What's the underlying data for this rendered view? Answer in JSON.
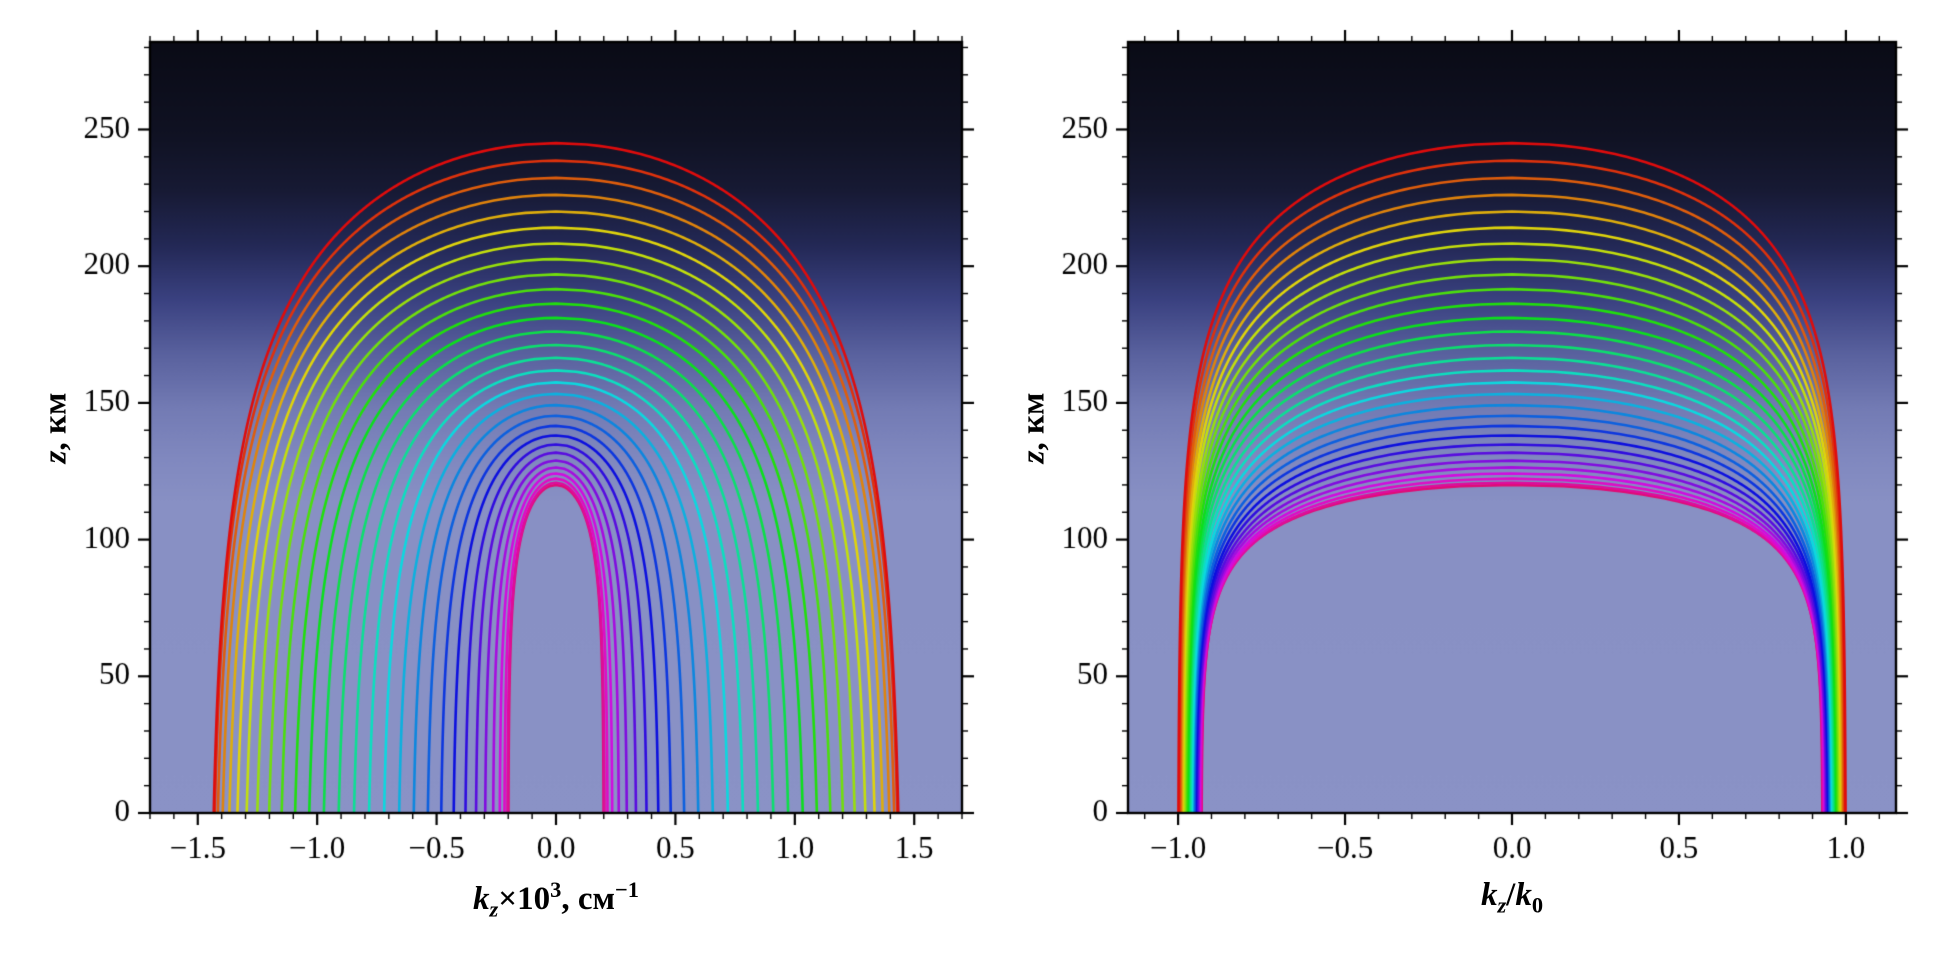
{
  "page": {
    "background": "#ffffff",
    "frame_color": "#000000",
    "text_color": "#000000"
  },
  "chart_data": {
    "type": "contour",
    "title": "",
    "legend": "none",
    "grid": false,
    "background_gradient": [
      {
        "z": 282,
        "color": "#0a0b16"
      },
      {
        "z": 248,
        "color": "#101223"
      },
      {
        "z": 228,
        "color": "#171a34"
      },
      {
        "z": 208,
        "color": "#232855"
      },
      {
        "z": 188,
        "color": "#3a4180"
      },
      {
        "z": 168,
        "color": "#59619e"
      },
      {
        "z": 148,
        "color": "#737bb4"
      },
      {
        "z": 130,
        "color": "#8088bf"
      },
      {
        "z": 114,
        "color": "#8890c4"
      },
      {
        "z": 0,
        "color": "#8a92c6"
      }
    ],
    "curves": [
      {
        "apex_km": 245.0,
        "color": "hsl(0,90%,46%)",
        "left_base": 1.45,
        "left_bend": 65.0,
        "right_base": 1.0,
        "right_bend": 40.0
      },
      {
        "apex_km": 238.6,
        "color": "hsl(11,90%,46%)",
        "left_base": 1.446,
        "left_bend": 63.6,
        "right_base": 0.998,
        "right_bend": 39.2
      },
      {
        "apex_km": 232.3,
        "color": "hsl(23,90%,46%)",
        "left_base": 1.433,
        "left_bend": 62.2,
        "right_base": 0.995,
        "right_bend": 38.5
      },
      {
        "apex_km": 226.1,
        "color": "hsl(34,90%,46%)",
        "left_base": 1.413,
        "left_bend": 60.9,
        "right_base": 0.993,
        "right_bend": 37.7
      },
      {
        "apex_km": 220.0,
        "color": "hsl(46,90%,46%)",
        "left_base": 1.385,
        "left_bend": 59.5,
        "right_base": 0.99,
        "right_bend": 37.0
      },
      {
        "apex_km": 214.1,
        "color": "hsl(57,90%,46%)",
        "left_base": 1.351,
        "left_bend": 58.1,
        "right_base": 0.988,
        "right_bend": 36.2
      },
      {
        "apex_km": 208.3,
        "color": "hsl(68,90%,46%)",
        "left_base": 1.312,
        "left_bend": 56.7,
        "right_base": 0.986,
        "right_bend": 35.4
      },
      {
        "apex_km": 202.6,
        "color": "hsl(80,90%,46%)",
        "left_base": 1.267,
        "left_bend": 55.3,
        "right_base": 0.983,
        "right_bend": 34.7
      },
      {
        "apex_km": 197.0,
        "color": "hsl(91,90%,46%)",
        "left_base": 1.217,
        "left_bend": 54.0,
        "right_base": 0.981,
        "right_bend": 33.9
      },
      {
        "apex_km": 191.6,
        "color": "hsl(102,90%,46%)",
        "left_base": 1.164,
        "left_bend": 52.6,
        "right_base": 0.978,
        "right_bend": 33.2
      },
      {
        "apex_km": 186.3,
        "color": "hsl(114,90%,46%)",
        "left_base": 1.107,
        "left_bend": 51.2,
        "right_base": 0.976,
        "right_bend": 32.4
      },
      {
        "apex_km": 181.1,
        "color": "hsl(125,90%,46%)",
        "left_base": 1.047,
        "left_bend": 49.8,
        "right_base": 0.973,
        "right_bend": 31.7
      },
      {
        "apex_km": 176.1,
        "color": "hsl(137,90%,46%)",
        "left_base": 0.985,
        "left_bend": 48.4,
        "right_base": 0.971,
        "right_bend": 30.9
      },
      {
        "apex_km": 171.2,
        "color": "hsl(148,90%,46%)",
        "left_base": 0.922,
        "left_bend": 47.1,
        "right_base": 0.969,
        "right_bend": 30.1
      },
      {
        "apex_km": 166.5,
        "color": "hsl(159,90%,46%)",
        "left_base": 0.857,
        "left_bend": 45.7,
        "right_base": 0.966,
        "right_bend": 29.4
      },
      {
        "apex_km": 161.9,
        "color": "hsl(171,90%,46%)",
        "left_base": 0.793,
        "left_bend": 44.3,
        "right_base": 0.964,
        "right_bend": 28.6
      },
      {
        "apex_km": 157.5,
        "color": "hsl(182,90%,46%)",
        "left_base": 0.729,
        "left_bend": 42.9,
        "right_base": 0.961,
        "right_bend": 27.9
      },
      {
        "apex_km": 153.3,
        "color": "hsl(193,90%,46%)",
        "left_base": 0.665,
        "left_bend": 41.6,
        "right_base": 0.959,
        "right_bend": 27.1
      },
      {
        "apex_km": 149.2,
        "color": "hsl(205,90%,46%)",
        "left_base": 0.603,
        "left_bend": 40.2,
        "right_base": 0.957,
        "right_bend": 26.3
      },
      {
        "apex_km": 145.3,
        "color": "hsl(216,90%,46%)",
        "left_base": 0.543,
        "left_bend": 38.8,
        "right_base": 0.954,
        "right_bend": 25.6
      },
      {
        "apex_km": 141.6,
        "color": "hsl(228,90%,46%)",
        "left_base": 0.486,
        "left_bend": 37.4,
        "right_base": 0.952,
        "right_bend": 24.8
      },
      {
        "apex_km": 138.1,
        "color": "hsl(239,90%,46%)",
        "left_base": 0.433,
        "left_bend": 36.0,
        "right_base": 0.949,
        "right_bend": 24.1
      },
      {
        "apex_km": 134.8,
        "color": "hsl(250,90%,46%)",
        "left_base": 0.383,
        "left_bend": 34.7,
        "right_base": 0.947,
        "right_bend": 23.3
      },
      {
        "apex_km": 131.8,
        "color": "hsl(262,90%,46%)",
        "left_base": 0.338,
        "left_bend": 33.3,
        "right_base": 0.944,
        "right_bend": 22.6
      },
      {
        "apex_km": 128.9,
        "color": "hsl(273,90%,46%)",
        "left_base": 0.299,
        "left_bend": 31.9,
        "right_base": 0.942,
        "right_bend": 21.8
      },
      {
        "apex_km": 126.4,
        "color": "hsl(284,90%,46%)",
        "left_base": 0.265,
        "left_bend": 30.5,
        "right_base": 0.94,
        "right_bend": 21.0
      },
      {
        "apex_km": 124.2,
        "color": "hsl(296,90%,46%)",
        "left_base": 0.237,
        "left_bend": 29.1,
        "right_base": 0.937,
        "right_bend": 20.3
      },
      {
        "apex_km": 122.3,
        "color": "hsl(307,90%,46%)",
        "left_base": 0.217,
        "left_bend": 27.8,
        "right_base": 0.935,
        "right_bend": 19.5
      },
      {
        "apex_km": 120.8,
        "color": "hsl(319,90%,46%)",
        "left_base": 0.204,
        "left_bend": 26.4,
        "right_base": 0.932,
        "right_bend": 18.8
      },
      {
        "apex_km": 120.0,
        "color": "hsl(330,90%,46%)",
        "left_base": 0.2,
        "left_bend": 25.0,
        "right_base": 0.93,
        "right_bend": 18.0
      }
    ],
    "panels": [
      {
        "panel": "left",
        "xlabel_plain": "kz×10³, см⁻¹",
        "xlabel_segments": [
          {
            "text": "k",
            "italic": true
          },
          {
            "text": "z",
            "italic": true,
            "script": "sub"
          },
          {
            "text": "×10"
          },
          {
            "text": "3",
            "script": "sup"
          },
          {
            "text": ", см"
          },
          {
            "text": "−1",
            "script": "sup"
          }
        ],
        "ylabel_plain": "z, км",
        "ylabel_segments": [
          {
            "text": "z",
            "italic": true
          },
          {
            "text": ", км"
          }
        ],
        "xlim": [
          -1.7,
          1.7
        ],
        "ylim": [
          0,
          282
        ],
        "x_tick_values": [
          -1.5,
          -1.0,
          -0.5,
          0.0,
          0.5,
          1.0,
          1.5
        ],
        "x_tick_labels": [
          "−1.5",
          "−1.0",
          "−0.5",
          "0.0",
          "0.5",
          "1.0",
          "1.5"
        ],
        "y_tick_values": [
          0,
          50,
          100,
          150,
          200,
          250
        ],
        "y_tick_labels": [
          "0",
          "50",
          "100",
          "150",
          "200",
          "250"
        ],
        "x_minor_step": 0.1,
        "y_minor_step": 10,
        "base_key": "left_base",
        "bend_key": "left_bend"
      },
      {
        "panel": "right",
        "xlabel_plain": "kz/k₀",
        "xlabel_segments": [
          {
            "text": "k",
            "italic": true
          },
          {
            "text": "z",
            "italic": true,
            "script": "sub"
          },
          {
            "text": "/"
          },
          {
            "text": "k",
            "italic": true
          },
          {
            "text": "0",
            "script": "sub"
          }
        ],
        "ylabel_plain": "z, км",
        "ylabel_segments": [
          {
            "text": "z",
            "italic": true
          },
          {
            "text": ", км"
          }
        ],
        "xlim": [
          -1.15,
          1.15
        ],
        "ylim": [
          0,
          282
        ],
        "x_tick_values": [
          -1.0,
          -0.5,
          0.0,
          0.5,
          1.0
        ],
        "x_tick_labels": [
          "−1.0",
          "−0.5",
          "0.0",
          "0.5",
          "1.0"
        ],
        "y_tick_values": [
          0,
          50,
          100,
          150,
          200,
          250
        ],
        "y_tick_labels": [
          "0",
          "50",
          "100",
          "150",
          "200",
          "250"
        ],
        "x_minor_step": 0.1,
        "y_minor_step": 10,
        "base_key": "right_base",
        "bend_key": "right_bend"
      }
    ]
  }
}
